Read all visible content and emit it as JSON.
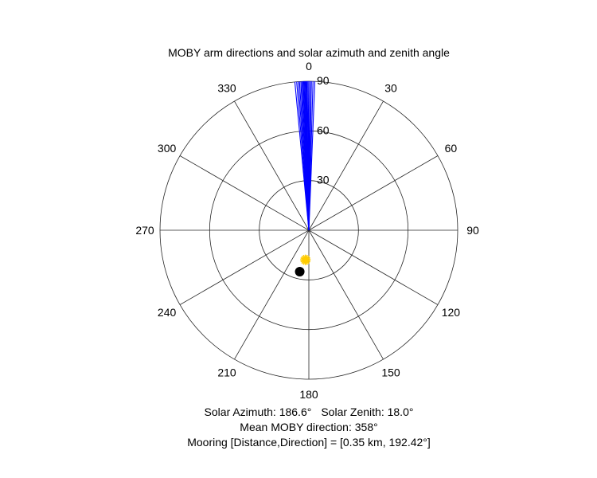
{
  "chart_data": {
    "type": "polar",
    "title": "MOBY arm directions and solar azimuth and zenith angle",
    "angular_axis": {
      "zero_location": "top",
      "direction": "clockwise",
      "tick_labels": [
        "0",
        "30",
        "60",
        "90",
        "120",
        "150",
        "180",
        "210",
        "240",
        "270",
        "300",
        "330"
      ]
    },
    "radial_axis": {
      "range": [
        0,
        90
      ],
      "tick_labels": [
        "30",
        "60",
        "90"
      ]
    },
    "series": [
      {
        "kind": "radial_lines",
        "color": "#0000ff",
        "r": 90,
        "theta_deg": [
          354.6,
          355.3,
          355.9,
          356.4,
          356.9,
          357.3,
          357.7,
          358.0,
          358.3,
          358.6,
          358.9,
          359.2,
          359.6,
          0.0,
          0.5,
          1.0,
          1.6,
          2.3
        ]
      },
      {
        "kind": "marker",
        "symbol": "sun",
        "color": "#ffcc00",
        "theta_deg": 186.6,
        "r": 18.0
      },
      {
        "kind": "marker",
        "symbol": "filled-circle",
        "color": "#000000",
        "theta_deg": 192.42,
        "r": 25.6
      }
    ]
  },
  "captions": {
    "solar_azimuth": "Solar Azimuth: 186.6°",
    "solar_zenith": "Solar Zenith: 18.0°",
    "mean_direction": "Mean MOBY direction: 358°",
    "mooring": "Mooring [Distance,Direction] = [0.35 km, 192.42°]"
  },
  "colors": {
    "grid": "#262626",
    "arms": "#0000ff",
    "sun": "#ffcc00",
    "mooring": "#000000"
  }
}
